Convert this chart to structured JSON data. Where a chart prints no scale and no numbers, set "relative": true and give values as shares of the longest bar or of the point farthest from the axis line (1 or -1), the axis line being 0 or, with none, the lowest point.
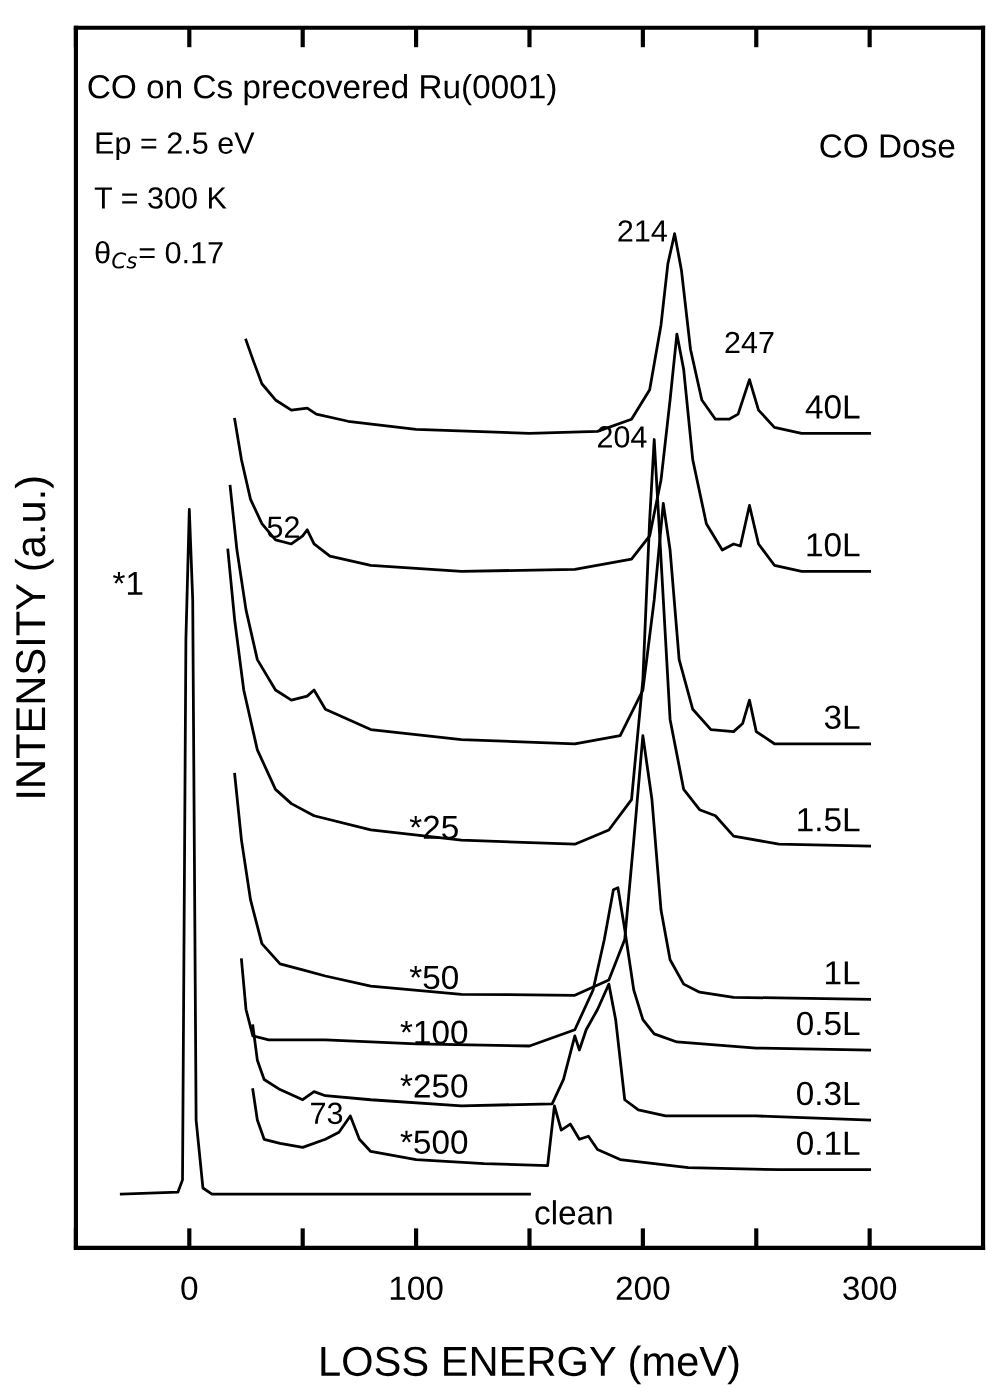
{
  "chart_data": {
    "type": "line",
    "relative": true,
    "title": "CO on Cs precovered Ru(0001)",
    "xlabel": "LOSS ENERGY (meV)",
    "ylabel": "INTENSITY (a.u.)",
    "legend_title": "CO Dose",
    "legend": false,
    "grid": false,
    "marker": "none",
    "line_style": "solid",
    "xlim": [
      -50,
      350
    ],
    "xticks": [
      {
        "value": -50,
        "label": null
      },
      0,
      {
        "value": 50,
        "label": null
      },
      100,
      {
        "value": 150,
        "label": null
      },
      200,
      {
        "value": 250,
        "label": null
      },
      300
    ],
    "series": [
      {
        "name": "40L",
        "color": "#000000",
        "x": [
          25,
          28,
          32,
          38,
          45,
          52,
          56,
          70,
          100,
          150,
          180,
          195,
          203,
          208,
          211,
          214,
          217,
          221,
          226,
          232,
          238,
          242,
          247,
          251,
          258,
          270,
          300
        ],
        "values": [
          0.895,
          0.876,
          0.852,
          0.836,
          0.826,
          0.828,
          0.822,
          0.815,
          0.807,
          0.803,
          0.805,
          0.817,
          0.846,
          0.91,
          0.97,
          1.0,
          0.964,
          0.886,
          0.836,
          0.817,
          0.817,
          0.822,
          0.856,
          0.826,
          0.809,
          0.803,
          0.803
        ]
      },
      {
        "name": "10L",
        "color": "#000000",
        "x": [
          20,
          23,
          27,
          32,
          38,
          45,
          50,
          52,
          55,
          62,
          80,
          120,
          170,
          195,
          203,
          208,
          212,
          215,
          218,
          222,
          228,
          235,
          240,
          243,
          247,
          251,
          258,
          270,
          300
        ],
        "values": [
          0.817,
          0.777,
          0.738,
          0.714,
          0.698,
          0.694,
          0.702,
          0.708,
          0.694,
          0.682,
          0.673,
          0.667,
          0.669,
          0.679,
          0.702,
          0.757,
          0.836,
          0.901,
          0.866,
          0.777,
          0.714,
          0.688,
          0.694,
          0.692,
          0.732,
          0.694,
          0.673,
          0.667,
          0.667
        ]
      },
      {
        "name": "3L",
        "color": "#000000",
        "x": [
          18,
          21,
          25,
          30,
          38,
          45,
          52,
          55,
          60,
          80,
          120,
          170,
          190,
          200,
          205,
          209,
          212,
          216,
          222,
          230,
          240,
          244,
          247,
          250,
          258,
          300
        ],
        "values": [
          0.751,
          0.688,
          0.629,
          0.58,
          0.55,
          0.54,
          0.544,
          0.55,
          0.531,
          0.511,
          0.501,
          0.497,
          0.505,
          0.55,
          0.639,
          0.734,
          0.688,
          0.58,
          0.531,
          0.511,
          0.509,
          0.517,
          0.54,
          0.509,
          0.497,
          0.497
        ]
      },
      {
        "name": "1.5L",
        "color": "#000000",
        "x": [
          17,
          20,
          24,
          30,
          38,
          45,
          55,
          80,
          120,
          170,
          185,
          195,
          200,
          203,
          205,
          208,
          212,
          218,
          225,
          232,
          240,
          260,
          300
        ],
        "values": [
          0.688,
          0.619,
          0.55,
          0.491,
          0.452,
          0.438,
          0.426,
          0.412,
          0.402,
          0.398,
          0.412,
          0.442,
          0.56,
          0.718,
          0.797,
          0.679,
          0.521,
          0.452,
          0.432,
          0.426,
          0.406,
          0.398,
          0.396
        ]
      },
      {
        "name": "1L",
        "color": "#000000",
        "x": [
          20,
          23,
          27,
          32,
          40,
          50,
          60,
          80,
          120,
          170,
          185,
          192,
          196,
          200,
          204,
          208,
          212,
          218,
          225,
          240,
          300
        ],
        "values": [
          0.467,
          0.402,
          0.343,
          0.3,
          0.28,
          0.274,
          0.268,
          0.258,
          0.25,
          0.249,
          0.264,
          0.304,
          0.402,
          0.505,
          0.442,
          0.333,
          0.284,
          0.26,
          0.252,
          0.247,
          0.245
        ]
      },
      {
        "name": "0.5L",
        "color": "#000000",
        "x": [
          23,
          25,
          28,
          35,
          60,
          100,
          150,
          170,
          178,
          183,
          187,
          189,
          192,
          196,
          200,
          205,
          215,
          250,
          300
        ],
        "values": [
          0.284,
          0.235,
          0.209,
          0.205,
          0.205,
          0.201,
          0.199,
          0.215,
          0.254,
          0.304,
          0.353,
          0.355,
          0.314,
          0.254,
          0.225,
          0.211,
          0.203,
          0.197,
          0.195
        ]
      },
      {
        "name": "0.3L",
        "color": "#000000",
        "x": [
          28,
          30,
          33,
          40,
          50,
          55,
          60,
          80,
          120,
          160,
          165,
          170,
          172,
          175,
          180,
          185,
          188,
          192,
          198,
          210,
          250,
          300
        ],
        "values": [
          0.219,
          0.185,
          0.166,
          0.156,
          0.146,
          0.154,
          0.15,
          0.146,
          0.14,
          0.142,
          0.166,
          0.209,
          0.195,
          0.215,
          0.235,
          0.26,
          0.225,
          0.146,
          0.136,
          0.13,
          0.13,
          0.126
        ]
      },
      {
        "name": "0.1L",
        "color": "#000000",
        "x": [
          28,
          30,
          33,
          40,
          50,
          60,
          66,
          71,
          75,
          80,
          100,
          130,
          158,
          161,
          164,
          168,
          172,
          176,
          180,
          190,
          220,
          260,
          300
        ],
        "values": [
          0.156,
          0.126,
          0.107,
          0.103,
          0.099,
          0.107,
          0.114,
          0.13,
          0.107,
          0.095,
          0.087,
          0.083,
          0.081,
          0.14,
          0.116,
          0.122,
          0.107,
          0.11,
          0.097,
          0.087,
          0.079,
          0.077,
          0.077
        ]
      },
      {
        "name": "clean",
        "color": "#000000",
        "x": [
          -30,
          -5,
          -3,
          -1.5,
          0,
          1.5,
          3,
          6,
          10,
          150
        ],
        "values": [
          0.053,
          0.055,
          0.067,
          0.6,
          0.728,
          0.639,
          0.126,
          0.059,
          0.053,
          0.053
        ]
      }
    ],
    "annotations": [
      "Ep = 2.5 eV",
      "T = 300 K",
      "θ$_{Cs}$= 0.17",
      {
        "text": "214",
        "x": 214,
        "y": 1.0
      },
      {
        "text": "247",
        "x": 247,
        "y": 0.856
      },
      {
        "text": "204",
        "x": 205,
        "y": 0.797
      },
      {
        "text": "52",
        "x": 52,
        "y": 0.708
      },
      {
        "text": "73",
        "x": 71,
        "y": 0.13
      },
      "*1",
      "*25",
      "*50",
      "*100",
      "*250",
      "*500"
    ]
  }
}
